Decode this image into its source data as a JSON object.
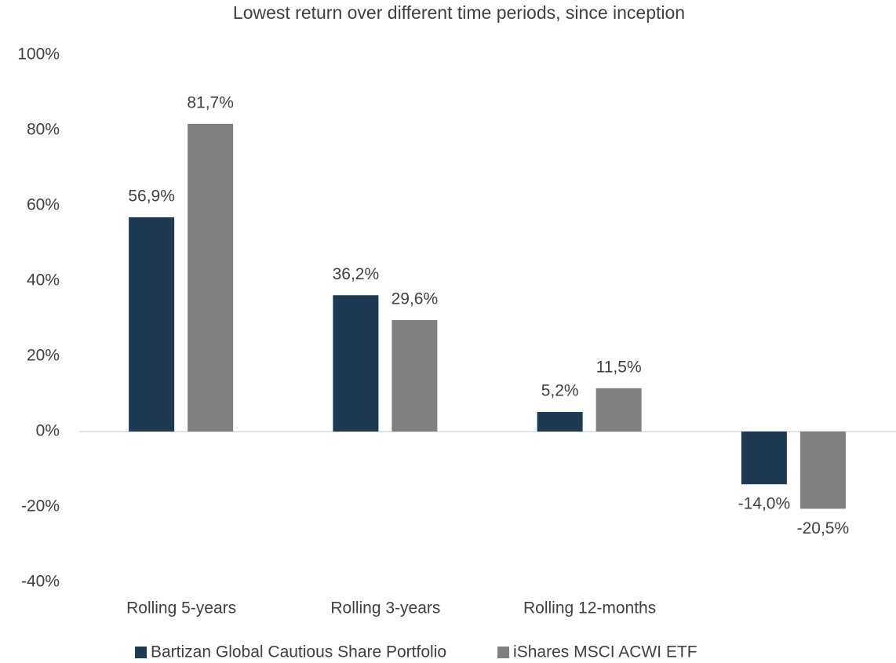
{
  "chart_data": {
    "type": "bar",
    "title": "Lowest return over different time periods, since inception",
    "categories": [
      "Rolling 5-years",
      "Rolling 3-years",
      "Rolling 12-months",
      null
    ],
    "series": [
      {
        "name": "Bartizan Global Cautious Share Portfolio",
        "color": "#1e3a52",
        "values": [
          56.9,
          36.2,
          5.2,
          -14.0
        ],
        "value_labels": [
          "56,9%",
          "36,2%",
          "5,2%",
          "-14,0%"
        ]
      },
      {
        "name": "iShares MSCI ACWI ETF",
        "color": "#808080",
        "values": [
          81.7,
          29.6,
          11.5,
          -20.5
        ],
        "value_labels": [
          "81,7%",
          "29,6%",
          "11,5%",
          "-20,5%"
        ]
      }
    ],
    "ylim": [
      -40,
      100
    ],
    "yticks": [
      {
        "value": -40,
        "label": "-40%"
      },
      {
        "value": -20,
        "label": "-20%"
      },
      {
        "value": 0,
        "label": "0%"
      },
      {
        "value": 20,
        "label": "20%"
      },
      {
        "value": 40,
        "label": "40%"
      },
      {
        "value": 60,
        "label": "60%"
      },
      {
        "value": 80,
        "label": "80%"
      },
      {
        "value": 100,
        "label": "100%"
      }
    ],
    "grid": false,
    "legend": "bottom"
  }
}
